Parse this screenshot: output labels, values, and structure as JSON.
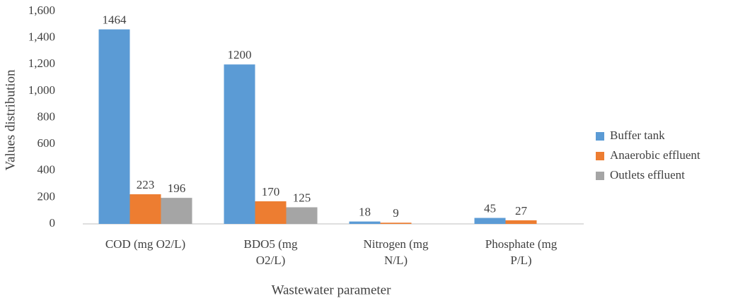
{
  "chart_data": {
    "type": "bar",
    "x_label": "Wastewater parameter",
    "y_label": "Values distribution",
    "categories": [
      [
        "COD (mg O2/L)"
      ],
      [
        "BDO5 (mg",
        "O2/L)"
      ],
      [
        "Nitrogen (mg",
        "N/L)"
      ],
      [
        "Phosphate (mg",
        "P/L)"
      ]
    ],
    "series": [
      {
        "name": "Buffer tank",
        "color": "#5b9bd5",
        "values": [
          1464,
          1200,
          18,
          45
        ]
      },
      {
        "name": "Anaerobic effluent",
        "color": "#ed7d31",
        "values": [
          223,
          170,
          9,
          27
        ]
      },
      {
        "name": "Outlets effluent",
        "color": "#a5a5a5",
        "values": [
          196,
          125,
          null,
          null
        ]
      }
    ],
    "ylim": [
      0,
      1600
    ],
    "yticks": [
      0,
      200,
      400,
      600,
      800,
      {
        "value": 1000,
        "label": "1,000"
      },
      {
        "value": 1200,
        "label": "1,200"
      },
      {
        "value": 1400,
        "label": "1,400"
      },
      {
        "value": 1600,
        "label": "1,600"
      }
    ],
    "grid": false,
    "legend": "right"
  }
}
